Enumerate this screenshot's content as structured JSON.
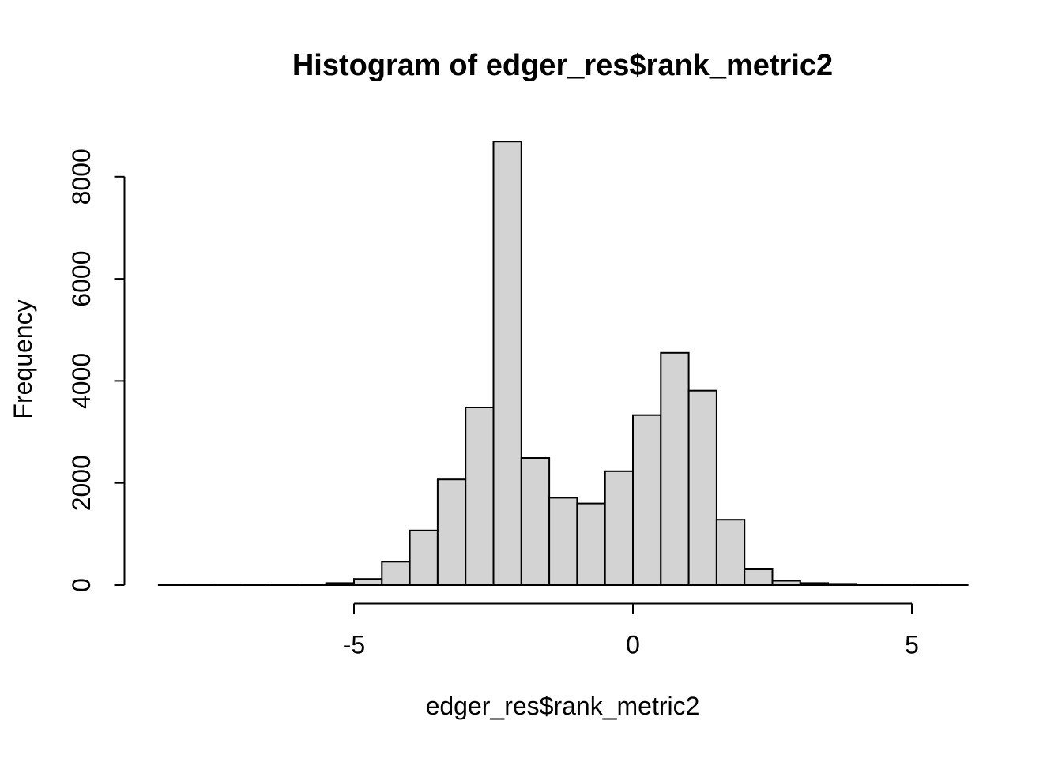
{
  "figure": {
    "kind": "R base graphics histogram",
    "background_color": "#FFFFFF",
    "text_color": "#000000"
  },
  "chart_data": {
    "type": "bar",
    "subtype": "histogram",
    "title": "Histogram of edger_res$rank_metric2",
    "xlabel": "edger_res$rank_metric2",
    "ylabel": "Frequency",
    "bin_start": -8.5,
    "bin_width": 0.5,
    "counts": [
      2,
      2,
      2,
      3,
      3,
      10,
      40,
      120,
      460,
      1070,
      2070,
      3480,
      8690,
      2490,
      1710,
      1600,
      2230,
      3330,
      4550,
      3810,
      1280,
      310,
      85,
      40,
      25,
      8,
      5,
      3,
      2
    ],
    "x_ticks": [
      -5,
      0,
      5
    ],
    "x_tick_labels": [
      "-5",
      "0",
      "5"
    ],
    "y_ticks": [
      0,
      2000,
      4000,
      6000,
      8000
    ],
    "y_tick_labels": [
      "0",
      "2000",
      "4000",
      "6000",
      "8000"
    ],
    "xlim": [
      -8.5,
      6.0
    ],
    "ylim": [
      0,
      8690
    ],
    "grid": false,
    "legend": null,
    "bar_fill": "#D3D3D3",
    "bar_stroke": "#000000",
    "axis_color": "#000000"
  }
}
